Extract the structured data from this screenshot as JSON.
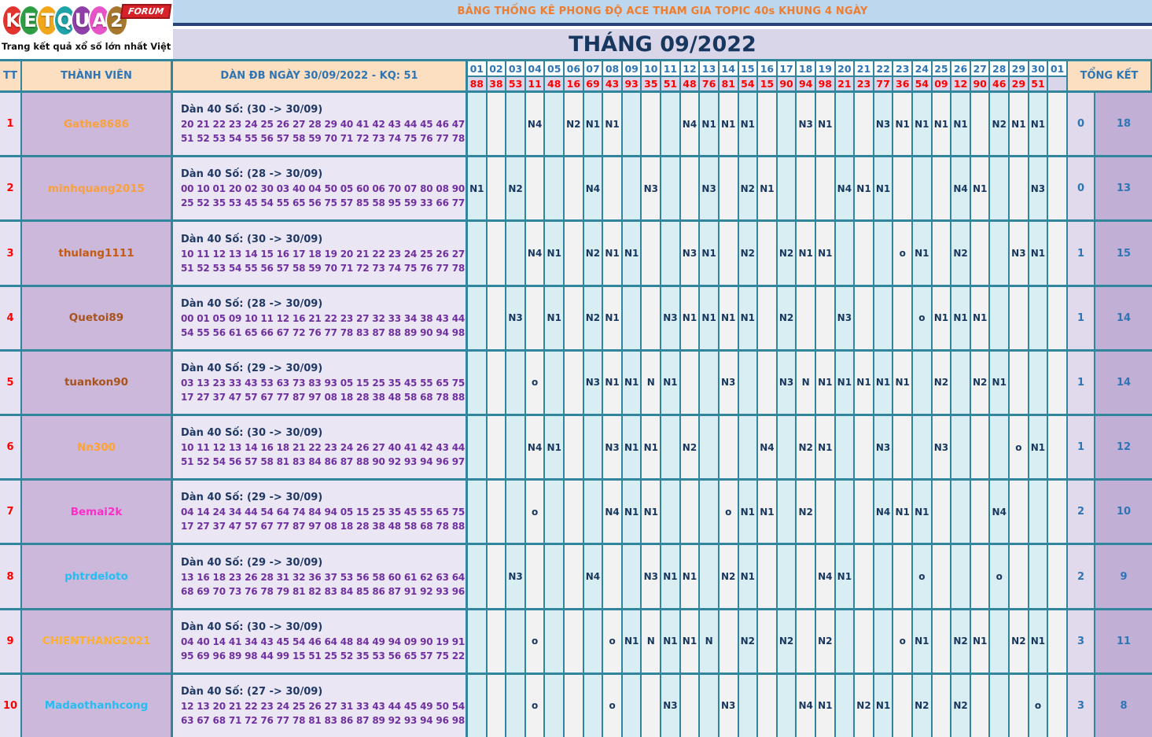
{
  "logo": {
    "brand": "KETQUA2",
    "badge": "FORUM",
    "tagline": "Trang kết quả xổ số lớn nhất Việt Nam",
    "letter_colors": [
      "#e3342f",
      "#2e9e44",
      "#f2a71b",
      "#1da3a8",
      "#8e3fa8",
      "#e754c8",
      "#a8772e"
    ]
  },
  "header": {
    "title": "BẢNG THỐNG KÊ PHONG ĐỘ ACE THAM GIA TOPIC 40s KHUNG 4 NGÀY",
    "subtitle": "THÁNG 09/2022"
  },
  "colors": {
    "teal_border": "#31859c",
    "banner_blue": "#bdd7ee",
    "banner_lavender": "#d9d6e9",
    "peach_header": "#fcdfc0",
    "mark_blue": "#d9eef3",
    "mark_white": "#f2f2f2",
    "blue_text": "#2e75b6",
    "navy_text": "#17375e",
    "purple_numbers": "#7030a0",
    "result_red": "#ff0000"
  },
  "table": {
    "col_tt": "TT",
    "col_member": "THÀNH VIÊN",
    "col_dan": "DÀN ĐB NGÀY 30/09/2022 - KQ: 51",
    "col_total": "TỔNG KẾT",
    "days": [
      "01",
      "02",
      "03",
      "04",
      "05",
      "06",
      "07",
      "08",
      "09",
      "10",
      "11",
      "12",
      "13",
      "14",
      "15",
      "16",
      "17",
      "18",
      "19",
      "20",
      "21",
      "22",
      "23",
      "24",
      "25",
      "26",
      "27",
      "28",
      "29",
      "30",
      "01"
    ],
    "results": [
      "88",
      "38",
      "53",
      "11",
      "48",
      "16",
      "69",
      "43",
      "93",
      "35",
      "51",
      "48",
      "76",
      "81",
      "54",
      "15",
      "90",
      "94",
      "98",
      "21",
      "23",
      "77",
      "36",
      "54",
      "09",
      "12",
      "90",
      "46",
      "29",
      "51",
      ""
    ],
    "rows": [
      {
        "tt": "1",
        "member": "Gathe8686",
        "member_color": "#f9a03f",
        "dan_title": "Dàn 40 Số: (30 -> 30/09)",
        "dan_line1": "20 21 22 23 24 25 26 27 28 29 40 41 42 43 44 45 46 47 48 49 50",
        "dan_line2": "51 52 53 54 55 56 57 58 59 70 71 72 73 74 75 76 77 78 79",
        "marks": [
          "",
          "",
          "",
          "N4",
          "",
          "N2",
          "N1",
          "N1",
          "",
          "",
          "",
          "N4",
          "N1",
          "N1",
          "N1",
          "",
          "",
          "N3",
          "N1",
          "",
          "",
          "N3",
          "N1",
          "N1",
          "N1",
          "N1",
          "",
          "N2",
          "N1",
          "N1",
          ""
        ],
        "total1": "0",
        "total2": "18"
      },
      {
        "tt": "2",
        "member": "minhquang2015",
        "member_color": "#f9a03f",
        "dan_title": "Dàn 40 Số: (28 -> 30/09)",
        "dan_line1": "00 10 01 20 02 30 03 40 04 50 05 60 06 70 07 80 08 90 09 15 51",
        "dan_line2": "25 52 35 53 45 54 55 65 56 75 57 85 58 95 59 33 66 77 88",
        "marks": [
          "N1",
          "",
          "N2",
          "",
          "",
          "",
          "N4",
          "",
          "",
          "N3",
          "",
          "",
          "N3",
          "",
          "N2",
          "N1",
          "",
          "",
          "",
          "N4",
          "N1",
          "N1",
          "",
          "",
          "",
          "N4",
          "N1",
          "",
          "",
          "N3",
          ""
        ],
        "total1": "0",
        "total2": "13"
      },
      {
        "tt": "3",
        "member": "thulang1111",
        "member_color": "#c55a11",
        "dan_title": "Dàn 40 Số: (30 -> 30/09)",
        "dan_line1": "10 11 12 13 14 15 16 17 18 19 20 21 22 23 24 25 26 27 28 29 50",
        "dan_line2": "51 52 53 54 55 56 57 58 59 70 71 72 73 74 75 76 77 78 79",
        "marks": [
          "",
          "",
          "",
          "N4",
          "N1",
          "",
          "N2",
          "N1",
          "N1",
          "",
          "",
          "N3",
          "N1",
          "",
          "N2",
          "",
          "N2",
          "N1",
          "N1",
          "",
          "",
          "",
          "o",
          "N1",
          "",
          "N2",
          "",
          "",
          "N3",
          "N1",
          ""
        ],
        "total1": "1",
        "total2": "15"
      },
      {
        "tt": "4",
        "member": "Quetoi89",
        "member_color": "#a9531c",
        "dan_title": "Dàn 40 Số: (28 -> 30/09)",
        "dan_line1": "00 01 05 09 10 11 12 16 21 22 23 27 32 33 34 38 43 44 45 49 50",
        "dan_line2": "54 55 56 61 65 66 67 72 76 77 78 83 87 88 89 90 94 98 99",
        "marks": [
          "",
          "",
          "N3",
          "",
          "N1",
          "",
          "N2",
          "N1",
          "",
          "",
          "N3",
          "N1",
          "N1",
          "N1",
          "N1",
          "",
          "N2",
          "",
          "",
          "N3",
          "",
          "",
          "",
          "o",
          "N1",
          "N1",
          "N1",
          "",
          "",
          "",
          ""
        ],
        "total1": "1",
        "total2": "14"
      },
      {
        "tt": "5",
        "member": "tuankon90",
        "member_color": "#a9531c",
        "dan_title": "Dàn 40 Số: (29 -> 30/09)",
        "dan_line1": "03 13 23 33 43 53 63 73 83 93 05 15 25 35 45 55 65 75 85 95 07",
        "dan_line2": "17 27 37 47 57 67 77 87 97 08 18 28 38 48 58 68 78 88 98",
        "marks": [
          "",
          "",
          "",
          "o",
          "",
          "",
          "N3",
          "N1",
          "N1",
          "N",
          "N1",
          "",
          "",
          "N3",
          "",
          "",
          "N3",
          "N",
          "N1",
          "N1",
          "N1",
          "N1",
          "N1",
          "",
          "N2",
          "",
          "N2",
          "N1",
          "",
          "",
          ""
        ],
        "total1": "1",
        "total2": "14"
      },
      {
        "tt": "6",
        "member": "Nn300",
        "member_color": "#ffa333",
        "dan_title": "Dàn 40 Số: (30 -> 30/09)",
        "dan_line1": "10 11 12 13 14 16 18 21 22 23 24 26 27 40 41 42 43 44 47 48 50",
        "dan_line2": "51 52 54 56 57 58 81 83 84 86 87 88 90 92 93 94 96 97 98",
        "marks": [
          "",
          "",
          "",
          "N4",
          "N1",
          "",
          "",
          "N3",
          "N1",
          "N1",
          "",
          "N2",
          "",
          "",
          "",
          "N4",
          "",
          "N2",
          "N1",
          "",
          "",
          "N3",
          "",
          "",
          "N3",
          "",
          "",
          "",
          "o",
          "N1",
          ""
        ],
        "total1": "1",
        "total2": "12"
      },
      {
        "tt": "7",
        "member": "Bemai2k",
        "member_color": "#ff2dc8",
        "dan_title": "Dàn 40 Số: (29 -> 30/09)",
        "dan_line1": "04 14 24 34 44 54 64 74 84 94 05 15 25 35 45 55 65 75 85 95 07",
        "dan_line2": "17 27 37 47 57 67 77 87 97 08 18 28 38 48 58 68 78 88 98",
        "marks": [
          "",
          "",
          "",
          "o",
          "",
          "",
          "",
          "N4",
          "N1",
          "N1",
          "",
          "",
          "",
          "o",
          "N1",
          "N1",
          "",
          "N2",
          "",
          "",
          "",
          "N4",
          "N1",
          "N1",
          "",
          "",
          "",
          "N4",
          "",
          "",
          ""
        ],
        "total1": "2",
        "total2": "10"
      },
      {
        "tt": "8",
        "member": "phtrdeloto",
        "member_color": "#27bdf2",
        "dan_title": "Dàn 40 Số: (29 -> 30/09)",
        "dan_line1": "13 16 18 23 26 28 31 32 36 37 53 56 58 60 61 62 63 64 65 66 67",
        "dan_line2": "68 69 70 73 76 78 79 81 82 83 84 85 86 87 91 92 93 96 97",
        "marks": [
          "",
          "",
          "N3",
          "",
          "",
          "",
          "N4",
          "",
          "",
          "N3",
          "N1",
          "N1",
          "",
          "N2",
          "N1",
          "",
          "",
          "",
          "N4",
          "N1",
          "",
          "",
          "",
          "o",
          "",
          "",
          "",
          "o",
          "",
          "",
          ""
        ],
        "total1": "2",
        "total2": "9"
      },
      {
        "tt": "9",
        "member": "CHIENTHANG2021",
        "member_color": "#ffb030",
        "dan_title": "Dàn 40 Số: (30 -> 30/09)",
        "dan_line1": "04 40 14 41 34 43 45 54 46 64 48 84 49 94 09 90 19 91 39 93 59",
        "dan_line2": "95 69 96 89 98 44 99 15 51 25 52 35 53 56 65 57 75 22 55",
        "marks": [
          "",
          "",
          "",
          "o",
          "",
          "",
          "",
          "o",
          "N1",
          "N",
          "N1",
          "N1",
          "N",
          "",
          "N2",
          "",
          "N2",
          "",
          "N2",
          "",
          "",
          "",
          "o",
          "N1",
          "",
          "N2",
          "N1",
          "",
          "N2",
          "N1",
          ""
        ],
        "total1": "3",
        "total2": "11"
      },
      {
        "tt": "10",
        "member": "Madaothanhcong",
        "member_color": "#27bdf2",
        "dan_title": "Dàn 40 Số: (27 -> 30/09)",
        "dan_line1": "12 13 20 21 22 23 24 25 26 27 31 33 43 44 45 49 50 54 55 56 62",
        "dan_line2": "63 67 68 71 72 76 77 78 81 83 86 87 89 92 93 94 96 98 99",
        "marks": [
          "",
          "",
          "",
          "o",
          "",
          "",
          "",
          "o",
          "",
          "",
          "N3",
          "",
          "",
          "N3",
          "",
          "",
          "",
          "N4",
          "N1",
          "",
          "N2",
          "N1",
          "",
          "N2",
          "",
          "N2",
          "",
          "",
          "",
          "o",
          ""
        ],
        "total1": "3",
        "total2": "8"
      }
    ]
  }
}
